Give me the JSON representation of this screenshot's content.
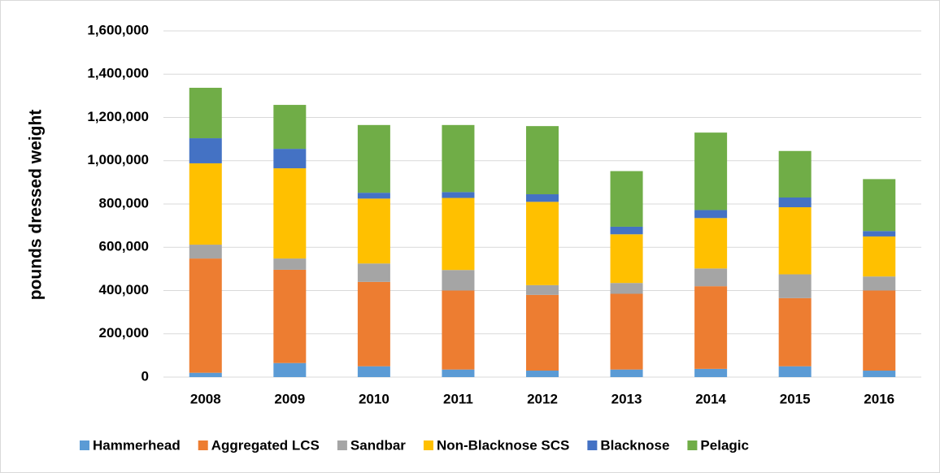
{
  "chart_data": {
    "type": "stacked_bar",
    "y_axis_label": "pounds dressed weight",
    "categories": [
      "2008",
      "2009",
      "2010",
      "2011",
      "2012",
      "2013",
      "2014",
      "2015",
      "2016"
    ],
    "series": [
      {
        "name": "Hammerhead",
        "color": "#5b9bd5",
        "values": [
          20000,
          65000,
          50000,
          35000,
          30000,
          35000,
          38000,
          50000,
          30000
        ]
      },
      {
        "name": "Aggregated LCS",
        "color": "#ed7d31",
        "values": [
          528000,
          431000,
          390000,
          365000,
          350000,
          350000,
          382000,
          315000,
          370000
        ]
      },
      {
        "name": "Sandbar",
        "color": "#a5a5a5",
        "values": [
          64000,
          52000,
          85000,
          95000,
          45000,
          50000,
          82000,
          110000,
          65000
        ]
      },
      {
        "name": "Non-Blacknose SCS",
        "color": "#ffc000",
        "values": [
          376000,
          417000,
          300000,
          333000,
          385000,
          225000,
          233000,
          310000,
          185000
        ]
      },
      {
        "name": "Blacknose",
        "color": "#4472c4",
        "values": [
          116000,
          90000,
          27000,
          27000,
          35000,
          35000,
          37000,
          45000,
          25000
        ]
      },
      {
        "name": "Pelagic",
        "color": "#70ad47",
        "values": [
          233000,
          203000,
          313000,
          310000,
          315000,
          257000,
          358000,
          215000,
          240000
        ]
      }
    ],
    "ylim": [
      0,
      1600000
    ],
    "yticks": [
      0,
      {
        "value": 200000,
        "label": "200,000"
      },
      {
        "value": 400000,
        "label": "400,000"
      },
      {
        "value": 600000,
        "label": "600,000"
      },
      {
        "value": 800000,
        "label": "800,000"
      },
      {
        "value": 1000000,
        "label": "1,000,000"
      },
      {
        "value": 1200000,
        "label": "1,200,000"
      },
      {
        "value": 1400000,
        "label": "1,400,000"
      },
      {
        "value": 1600000,
        "label": "1,600,000"
      }
    ],
    "grid": true,
    "legend": "bottom"
  }
}
